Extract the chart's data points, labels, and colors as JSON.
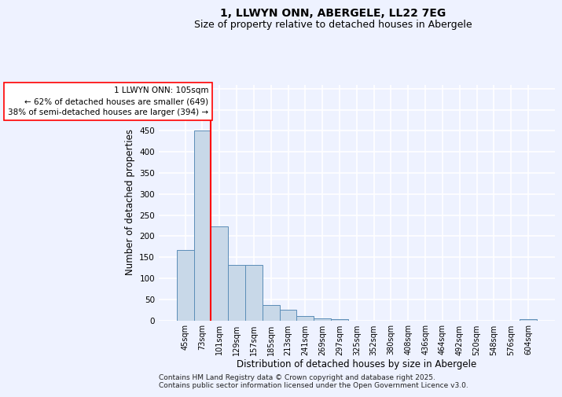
{
  "title": "1, LLWYN ONN, ABERGELE, LL22 7EG",
  "subtitle": "Size of property relative to detached houses in Abergele",
  "xlabel": "Distribution of detached houses by size in Abergele",
  "ylabel": "Number of detached properties",
  "categories": [
    "45sqm",
    "73sqm",
    "101sqm",
    "129sqm",
    "157sqm",
    "185sqm",
    "213sqm",
    "241sqm",
    "269sqm",
    "297sqm",
    "325sqm",
    "352sqm",
    "380sqm",
    "408sqm",
    "436sqm",
    "464sqm",
    "492sqm",
    "520sqm",
    "548sqm",
    "576sqm",
    "604sqm"
  ],
  "values": [
    167,
    450,
    224,
    131,
    131,
    36,
    25,
    10,
    5,
    2,
    0,
    0,
    0,
    0,
    0,
    0,
    0,
    0,
    0,
    0,
    3
  ],
  "bar_color": "#c8d8e8",
  "bar_edge_color": "#5b8db8",
  "vline_x_index": 2,
  "vline_color": "red",
  "annotation_text": "1 LLWYN ONN: 105sqm\n← 62% of detached houses are smaller (649)\n38% of semi-detached houses are larger (394) →",
  "annotation_box_color": "white",
  "annotation_box_edge_color": "red",
  "annotation_fontsize": 7.5,
  "ylim": [
    0,
    560
  ],
  "yticks": [
    0,
    50,
    100,
    150,
    200,
    250,
    300,
    350,
    400,
    450,
    500,
    550
  ],
  "background_color": "#eef2ff",
  "grid_color": "white",
  "footer": "Contains HM Land Registry data © Crown copyright and database right 2025.\nContains public sector information licensed under the Open Government Licence v3.0.",
  "title_fontsize": 10,
  "subtitle_fontsize": 9,
  "xlabel_fontsize": 8.5,
  "ylabel_fontsize": 8.5,
  "footer_fontsize": 6.5
}
